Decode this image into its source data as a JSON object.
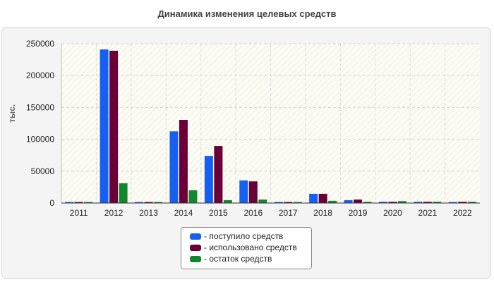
{
  "chart_data": {
    "type": "bar",
    "title": "Динамика изменения целевых средств",
    "ylabel": "тыс.",
    "xlabel": "",
    "ylim": [
      0,
      250000
    ],
    "yticks": [
      0,
      50000,
      100000,
      150000,
      200000,
      250000
    ],
    "grid": true,
    "legend_position": "bottom-center",
    "categories": [
      "2011",
      "2012",
      "2013",
      "2014",
      "2015",
      "2016",
      "2017",
      "2018",
      "2019",
      "2020",
      "2021",
      "2022"
    ],
    "series": [
      {
        "name": "- поступило средств",
        "color": "#1560f0",
        "values": [
          500,
          241000,
          500,
          112500,
          74000,
          35500,
          700,
          14500,
          4500,
          2000,
          2000,
          1500
        ]
      },
      {
        "name": "- использовано средств",
        "color": "#6a0035",
        "values": [
          500,
          239000,
          500,
          130500,
          89500,
          34000,
          700,
          14500,
          5500,
          2000,
          2000,
          2000
        ]
      },
      {
        "name": "- остаток средств",
        "color": "#118830",
        "values": [
          500,
          31000,
          500,
          20000,
          4500,
          5500,
          700,
          3500,
          2000,
          3000,
          2000,
          2000
        ]
      }
    ]
  }
}
